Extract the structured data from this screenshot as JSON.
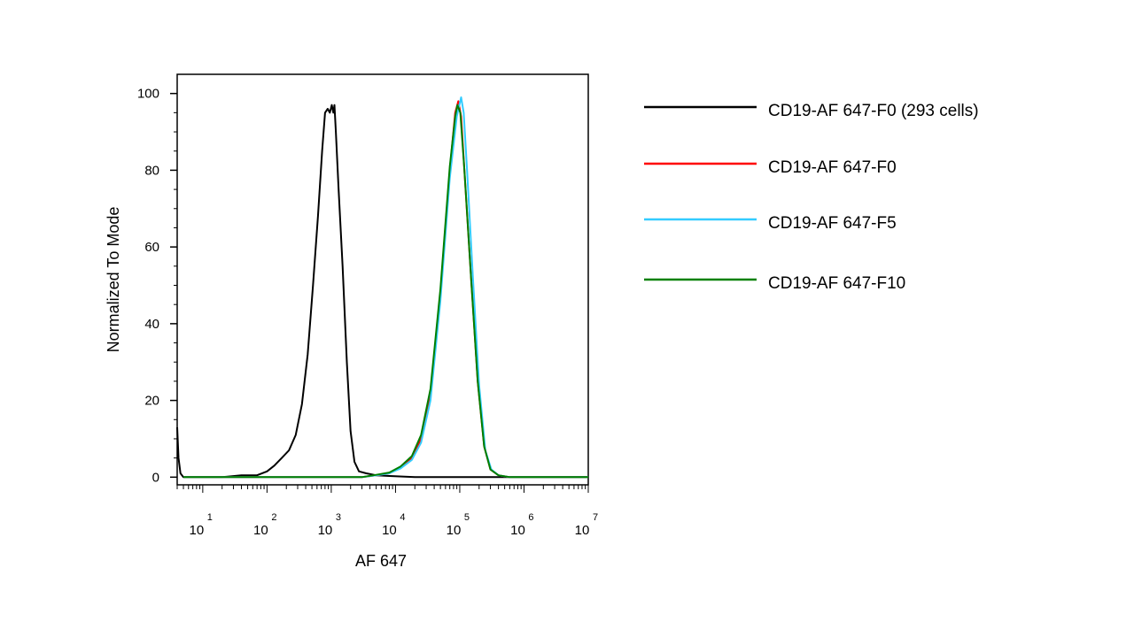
{
  "chart_data": {
    "type": "line",
    "title": "",
    "xlabel": "AF 647",
    "ylabel": "Normalized To Mode",
    "x_scale": "log",
    "xlim": [
      4,
      10000000
    ],
    "ylim": [
      -2,
      105
    ],
    "y_ticks": [
      0,
      20,
      40,
      60,
      80,
      100
    ],
    "y_tick_labels": [
      "0",
      "20",
      "40",
      "60",
      "80",
      "100"
    ],
    "x_ticks": [
      {
        "value": 10,
        "base": "10",
        "exp": "1"
      },
      {
        "value": 100,
        "base": "10",
        "exp": "2"
      },
      {
        "value": 1000,
        "base": "10",
        "exp": "3"
      },
      {
        "value": 10000,
        "base": "10",
        "exp": "4"
      },
      {
        "value": 100000,
        "base": "10",
        "exp": "5"
      },
      {
        "value": 1000000,
        "base": "10",
        "exp": "6"
      },
      {
        "value": 10000000,
        "base": "10",
        "exp": "7"
      }
    ],
    "grid": false,
    "legend_position": "right",
    "series": [
      {
        "name": "CD19-AF 647-F0 (293 cells)",
        "color": "#000000",
        "points": [
          [
            4.0,
            13
          ],
          [
            4.2,
            5
          ],
          [
            4.5,
            1
          ],
          [
            5,
            0
          ],
          [
            20,
            0
          ],
          [
            40,
            0.5
          ],
          [
            70,
            0.5
          ],
          [
            100,
            1.5
          ],
          [
            130,
            3
          ],
          [
            170,
            5
          ],
          [
            220,
            7
          ],
          [
            280,
            11
          ],
          [
            350,
            19
          ],
          [
            430,
            32
          ],
          [
            520,
            50
          ],
          [
            620,
            68
          ],
          [
            720,
            85
          ],
          [
            800,
            95
          ],
          [
            880,
            96
          ],
          [
            950,
            95
          ],
          [
            1020,
            97
          ],
          [
            1080,
            95
          ],
          [
            1120,
            97
          ],
          [
            1180,
            90
          ],
          [
            1300,
            75
          ],
          [
            1500,
            55
          ],
          [
            1750,
            30
          ],
          [
            2000,
            12
          ],
          [
            2300,
            4
          ],
          [
            2700,
            1.5
          ],
          [
            3500,
            1
          ],
          [
            5000,
            0.5
          ],
          [
            8000,
            0.3
          ],
          [
            20000,
            0
          ],
          [
            10000000,
            0
          ]
        ]
      },
      {
        "name": "CD19-AF 647-F0",
        "color": "#ff0000",
        "points": [
          [
            5,
            0
          ],
          [
            3000,
            0
          ],
          [
            5000,
            0.5
          ],
          [
            8000,
            1
          ],
          [
            12000,
            2.5
          ],
          [
            18000,
            5
          ],
          [
            25000,
            10
          ],
          [
            35000,
            22
          ],
          [
            50000,
            48
          ],
          [
            70000,
            80
          ],
          [
            85000,
            95
          ],
          [
            95000,
            98
          ],
          [
            105000,
            94
          ],
          [
            120000,
            78
          ],
          [
            150000,
            52
          ],
          [
            190000,
            25
          ],
          [
            240000,
            8
          ],
          [
            300000,
            2
          ],
          [
            400000,
            0.5
          ],
          [
            600000,
            0
          ],
          [
            10000000,
            0
          ]
        ]
      },
      {
        "name": "CD19-AF 647-F5",
        "color": "#33ccff",
        "points": [
          [
            5,
            0
          ],
          [
            3000,
            0
          ],
          [
            5000,
            0.5
          ],
          [
            8000,
            1
          ],
          [
            12000,
            2.3
          ],
          [
            18000,
            4.5
          ],
          [
            25000,
            9
          ],
          [
            35000,
            20
          ],
          [
            50000,
            46
          ],
          [
            70000,
            78
          ],
          [
            90000,
            94
          ],
          [
            105000,
            99
          ],
          [
            115000,
            95
          ],
          [
            130000,
            80
          ],
          [
            160000,
            52
          ],
          [
            200000,
            24
          ],
          [
            250000,
            7
          ],
          [
            310000,
            2
          ],
          [
            400000,
            0.5
          ],
          [
            600000,
            0
          ],
          [
            10000000,
            0
          ]
        ]
      },
      {
        "name": "CD19-AF 647-F10",
        "color": "#008000",
        "points": [
          [
            5,
            0
          ],
          [
            3000,
            0
          ],
          [
            5000,
            0.6
          ],
          [
            8000,
            1.2
          ],
          [
            12000,
            2.8
          ],
          [
            18000,
            5.5
          ],
          [
            25000,
            11
          ],
          [
            35000,
            23
          ],
          [
            50000,
            49
          ],
          [
            70000,
            81
          ],
          [
            85000,
            94
          ],
          [
            92000,
            97
          ],
          [
            102000,
            95
          ],
          [
            118000,
            80
          ],
          [
            150000,
            52
          ],
          [
            190000,
            25
          ],
          [
            240000,
            8
          ],
          [
            300000,
            2
          ],
          [
            400000,
            0.5
          ],
          [
            600000,
            0
          ],
          [
            10000000,
            0
          ]
        ]
      }
    ]
  }
}
